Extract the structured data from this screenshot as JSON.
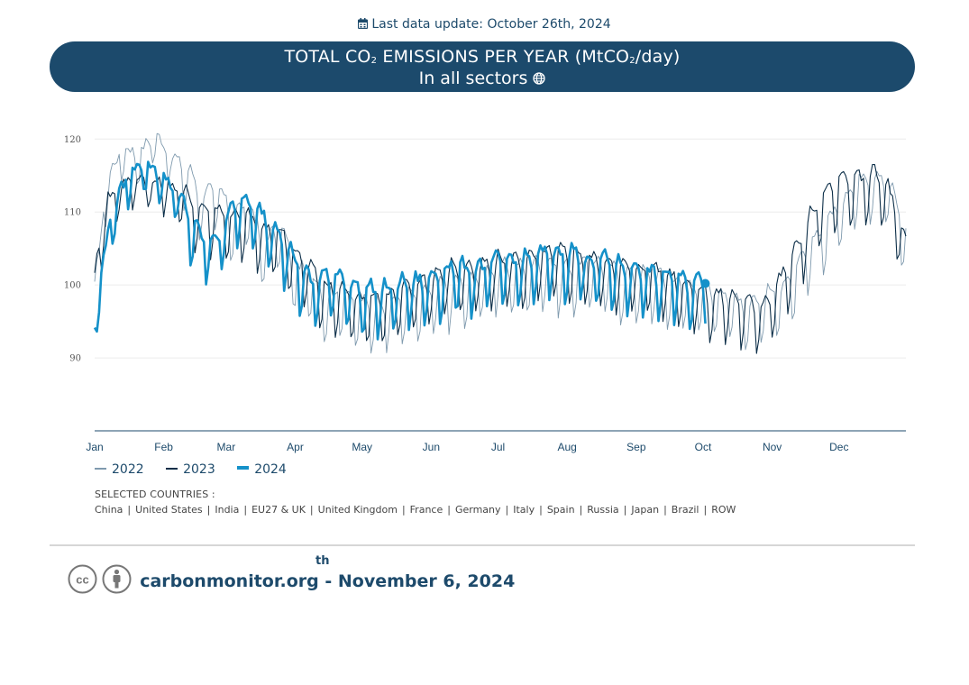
{
  "update": {
    "label": "Last data update: October 26th, 2024",
    "icon": "calendar-icon"
  },
  "banner": {
    "title_before": "TOTAL CO",
    "title_sub1": "2",
    "title_mid": " EMISSIONS PER YEAR (MtCO",
    "title_sub2": "2",
    "title_after": "/day)",
    "subtitle": "In all sectors",
    "subtitle_icon": "globe-icon",
    "bg_color": "#1c4a6c"
  },
  "chart_data": {
    "type": "line",
    "title": "TOTAL CO2 EMISSIONS PER YEAR (MtCO2/day)",
    "xlabel": "",
    "ylabel": "MtCO2/day",
    "ylim": [
      80,
      123
    ],
    "yticks": [
      90,
      100,
      110,
      120
    ],
    "months": [
      "Jan",
      "Feb",
      "Mar",
      "Apr",
      "May",
      "Jun",
      "Jul",
      "Aug",
      "Sep",
      "Oct",
      "Nov",
      "Dec"
    ],
    "grid": true,
    "series": [
      {
        "name": "2022",
        "color": "#7f9aae",
        "width": 0.9,
        "anchors": [
          [
            1,
            99
          ],
          [
            7,
            114
          ],
          [
            14,
            118
          ],
          [
            21,
            117
          ],
          [
            28,
            120
          ],
          [
            35,
            117
          ],
          [
            42,
            115
          ],
          [
            49,
            111
          ],
          [
            56,
            112
          ],
          [
            63,
            108
          ],
          [
            70,
            110
          ],
          [
            77,
            104
          ],
          [
            84,
            107
          ],
          [
            91,
            101
          ],
          [
            98,
            100
          ],
          [
            105,
            97
          ],
          [
            112,
            98
          ],
          [
            119,
            96
          ],
          [
            126,
            96
          ],
          [
            133,
            96
          ],
          [
            140,
            97
          ],
          [
            147,
            97
          ],
          [
            154,
            98
          ],
          [
            161,
            99
          ],
          [
            168,
            99
          ],
          [
            175,
            100
          ],
          [
            182,
            101
          ],
          [
            189,
            101
          ],
          [
            196,
            101
          ],
          [
            203,
            102
          ],
          [
            210,
            101
          ],
          [
            217,
            101
          ],
          [
            224,
            102
          ],
          [
            231,
            101
          ],
          [
            238,
            100
          ],
          [
            245,
            100
          ],
          [
            252,
            100
          ],
          [
            259,
            99
          ],
          [
            266,
            99
          ],
          [
            273,
            98
          ],
          [
            280,
            98
          ],
          [
            287,
            97
          ],
          [
            294,
            96
          ],
          [
            301,
            97
          ],
          [
            308,
            98
          ],
          [
            315,
            100
          ],
          [
            322,
            104
          ],
          [
            329,
            107
          ],
          [
            336,
            110
          ],
          [
            343,
            113
          ],
          [
            350,
            114
          ],
          [
            357,
            113
          ],
          [
            365,
            106
          ]
        ]
      },
      {
        "name": "2023",
        "color": "#0c2e48",
        "width": 1.1,
        "anchors": [
          [
            1,
            101
          ],
          [
            7,
            111
          ],
          [
            14,
            113
          ],
          [
            21,
            114
          ],
          [
            28,
            113
          ],
          [
            35,
            113
          ],
          [
            42,
            111
          ],
          [
            49,
            109
          ],
          [
            56,
            109
          ],
          [
            63,
            108
          ],
          [
            70,
            108
          ],
          [
            77,
            106
          ],
          [
            84,
            106
          ],
          [
            91,
            103
          ],
          [
            98,
            101
          ],
          [
            105,
            98
          ],
          [
            112,
            98
          ],
          [
            119,
            97
          ],
          [
            126,
            97
          ],
          [
            133,
            97
          ],
          [
            140,
            98
          ],
          [
            147,
            99
          ],
          [
            154,
            100
          ],
          [
            161,
            101
          ],
          [
            168,
            101
          ],
          [
            175,
            101
          ],
          [
            182,
            102
          ],
          [
            189,
            102
          ],
          [
            196,
            102
          ],
          [
            203,
            103
          ],
          [
            210,
            103
          ],
          [
            217,
            103
          ],
          [
            224,
            102
          ],
          [
            231,
            102
          ],
          [
            238,
            101
          ],
          [
            245,
            101
          ],
          [
            252,
            101
          ],
          [
            259,
            100
          ],
          [
            266,
            99
          ],
          [
            273,
            98
          ],
          [
            280,
            97
          ],
          [
            287,
            97
          ],
          [
            294,
            96
          ],
          [
            301,
            96
          ],
          [
            308,
            99
          ],
          [
            315,
            103
          ],
          [
            322,
            108
          ],
          [
            329,
            111
          ],
          [
            336,
            113
          ],
          [
            343,
            113
          ],
          [
            350,
            114
          ],
          [
            357,
            112
          ],
          [
            365,
            104
          ]
        ]
      },
      {
        "name": "2024",
        "color": "#1591c9",
        "width": 2.6,
        "anchors": [
          [
            1,
            94
          ],
          [
            7,
            107
          ],
          [
            14,
            113
          ],
          [
            21,
            116
          ],
          [
            28,
            115
          ],
          [
            35,
            113
          ],
          [
            42,
            109
          ],
          [
            49,
            105
          ],
          [
            56,
            105
          ],
          [
            63,
            110
          ],
          [
            70,
            110
          ],
          [
            77,
            108
          ],
          [
            84,
            106
          ],
          [
            91,
            102
          ],
          [
            98,
            99
          ],
          [
            105,
            100
          ],
          [
            112,
            100
          ],
          [
            119,
            98
          ],
          [
            126,
            98
          ],
          [
            133,
            98
          ],
          [
            140,
            99
          ],
          [
            147,
            99
          ],
          [
            154,
            100
          ],
          [
            161,
            101
          ],
          [
            168,
            101
          ],
          [
            175,
            101
          ],
          [
            182,
            102
          ],
          [
            189,
            102
          ],
          [
            196,
            102
          ],
          [
            203,
            103
          ],
          [
            210,
            103
          ],
          [
            217,
            103
          ],
          [
            224,
            102
          ],
          [
            231,
            102
          ],
          [
            238,
            101
          ],
          [
            245,
            101
          ],
          [
            252,
            100
          ],
          [
            259,
            100
          ],
          [
            266,
            99
          ],
          [
            273,
            99
          ],
          [
            275,
            100
          ]
        ]
      }
    ],
    "last_point": {
      "series": "2024",
      "day": 275,
      "value": 100.2
    }
  },
  "legend": [
    {
      "label": "2022",
      "color": "#7f9aae"
    },
    {
      "label": "2023",
      "color": "#0c2e48"
    },
    {
      "label": "2024",
      "color": "#1591c9"
    }
  ],
  "countries_label": "SELECTED COUNTRIES :",
  "countries": [
    "China",
    "United States",
    "India",
    "EU27 & UK",
    "United Kingdom",
    "France",
    "Germany",
    "Italy",
    "Spain",
    "Russia",
    "Japan",
    "Brazil",
    "ROW"
  ],
  "countries_separator": "|",
  "footer": {
    "text": "carbonmonitor.org - November 6, 2024",
    "superscript": "th",
    "icons": [
      "cc-icon",
      "person-icon"
    ]
  }
}
